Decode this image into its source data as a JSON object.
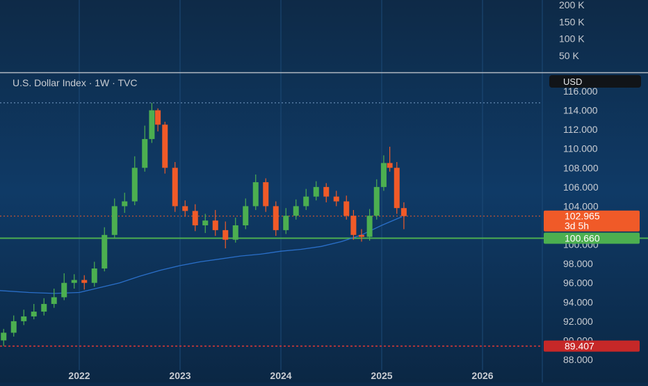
{
  "chart_data": {
    "type": "candlestick",
    "title": "U.S. Dollar Index · 1W · TVC",
    "currency_label": "USD",
    "colors": {
      "up": "#4caf50",
      "down": "#f05a28",
      "ma_line": "#2a6fc9",
      "support_line": "#4caf50",
      "price_label": "#f05a28",
      "support_label": "#4caf50",
      "low_label": "#c62828",
      "low_line": "#e53935",
      "separator": "#b0b8c2",
      "axis_text": "#c8ccd2"
    },
    "price_axis": {
      "ticks": [
        "116.000",
        "114.000",
        "112.000",
        "110.000",
        "108.000",
        "106.000",
        "104.000",
        "102.000",
        "100.000",
        "98.000",
        "96.000",
        "94.000",
        "92.000",
        "90.000",
        "88.000"
      ],
      "tick_values": [
        116,
        114,
        112,
        110,
        108,
        106,
        104,
        102,
        100,
        98,
        96,
        94,
        92,
        90,
        88
      ]
    },
    "volume_axis": {
      "ticks": [
        "200 K",
        "150 K",
        "100 K",
        "50 K"
      ],
      "tick_values": [
        200000,
        150000,
        100000,
        50000
      ]
    },
    "time_axis": {
      "ticks": [
        "2022",
        "2023",
        "2024",
        "2025",
        "2026"
      ],
      "tick_values": [
        2022.0,
        2023.0,
        2024.0,
        2025.0,
        2026.0
      ]
    },
    "current_price": {
      "value": 102.965,
      "label": "102.965",
      "countdown": "3d 5h"
    },
    "support_level": {
      "value": 100.66,
      "label": "100.660"
    },
    "low_level": {
      "value": 89.407,
      "label": "89.407"
    },
    "high_level": {
      "value": 114.78
    },
    "moving_average": {
      "x": [
        2021.2,
        2021.5,
        2021.75,
        2022.0,
        2022.2,
        2022.4,
        2022.6,
        2022.8,
        2023.0,
        2023.2,
        2023.4,
        2023.6,
        2023.8,
        2024.0,
        2024.2,
        2024.4,
        2024.6,
        2024.8,
        2025.0,
        2025.2
      ],
      "y": [
        95.2,
        95.0,
        94.9,
        95.0,
        95.5,
        96.0,
        96.7,
        97.3,
        97.8,
        98.2,
        98.5,
        98.8,
        99.0,
        99.3,
        99.5,
        99.8,
        100.3,
        101.0,
        102.0,
        102.9
      ]
    },
    "candles": {
      "x": [
        2021.15,
        2021.25,
        2021.35,
        2021.45,
        2021.55,
        2021.65,
        2021.75,
        2021.85,
        2021.95,
        2022.05,
        2022.15,
        2022.25,
        2022.35,
        2022.45,
        2022.55,
        2022.65,
        2022.72,
        2022.78,
        2022.85,
        2022.95,
        2023.05,
        2023.15,
        2023.25,
        2023.35,
        2023.45,
        2023.55,
        2023.65,
        2023.75,
        2023.85,
        2023.95,
        2024.05,
        2024.15,
        2024.25,
        2024.35,
        2024.45,
        2024.55,
        2024.65,
        2024.72,
        2024.8,
        2024.88,
        2024.95,
        2025.02,
        2025.08,
        2025.15,
        2025.22
      ],
      "open": [
        91.5,
        90.0,
        90.8,
        92.0,
        92.5,
        93.0,
        93.8,
        94.5,
        96.0,
        96.3,
        96.0,
        97.5,
        101.0,
        104.0,
        104.5,
        108.0,
        111.0,
        114.0,
        112.5,
        108.0,
        104.0,
        103.5,
        102.0,
        102.5,
        101.5,
        100.5,
        102.0,
        104.0,
        106.5,
        104.0,
        101.5,
        103.0,
        104.0,
        105.0,
        106.0,
        105.0,
        104.5,
        103.0,
        101.0,
        100.8,
        103.0,
        106.0,
        108.5,
        108.0,
        103.8
      ],
      "close": [
        90.0,
        90.8,
        92.0,
        92.5,
        93.0,
        93.8,
        94.5,
        96.0,
        96.3,
        96.0,
        97.5,
        101.0,
        104.0,
        104.5,
        108.0,
        111.0,
        114.0,
        112.5,
        108.0,
        104.0,
        103.5,
        102.0,
        102.5,
        101.5,
        100.5,
        102.0,
        104.0,
        106.5,
        104.0,
        101.5,
        103.0,
        104.0,
        105.0,
        106.0,
        105.0,
        104.5,
        103.0,
        101.0,
        100.8,
        103.0,
        106.0,
        108.5,
        108.0,
        103.8,
        102.965
      ],
      "high": [
        92.0,
        91.2,
        92.6,
        93.2,
        93.8,
        94.4,
        95.4,
        97.0,
        96.9,
        96.8,
        98.2,
        101.8,
        104.8,
        105.4,
        109.2,
        112.4,
        114.78,
        114.2,
        112.8,
        108.6,
        104.6,
        104.2,
        103.2,
        103.6,
        102.4,
        102.8,
        104.8,
        107.3,
        106.9,
        104.5,
        103.8,
        104.7,
        105.8,
        106.6,
        106.4,
        105.6,
        105.1,
        103.6,
        101.6,
        103.7,
        106.8,
        109.3,
        110.2,
        108.6,
        104.4
      ],
      "low": [
        89.6,
        89.41,
        90.4,
        91.6,
        92.2,
        92.6,
        93.4,
        94.2,
        95.4,
        95.3,
        95.6,
        97.2,
        100.6,
        103.3,
        104.1,
        107.6,
        110.6,
        111.8,
        107.4,
        103.4,
        102.9,
        101.4,
        101.2,
        100.9,
        99.6,
        100.2,
        101.6,
        103.6,
        103.4,
        100.9,
        101.1,
        102.6,
        103.6,
        104.6,
        104.4,
        104.0,
        102.6,
        100.5,
        100.3,
        100.4,
        102.6,
        105.6,
        107.6,
        103.2,
        101.6
      ]
    }
  }
}
